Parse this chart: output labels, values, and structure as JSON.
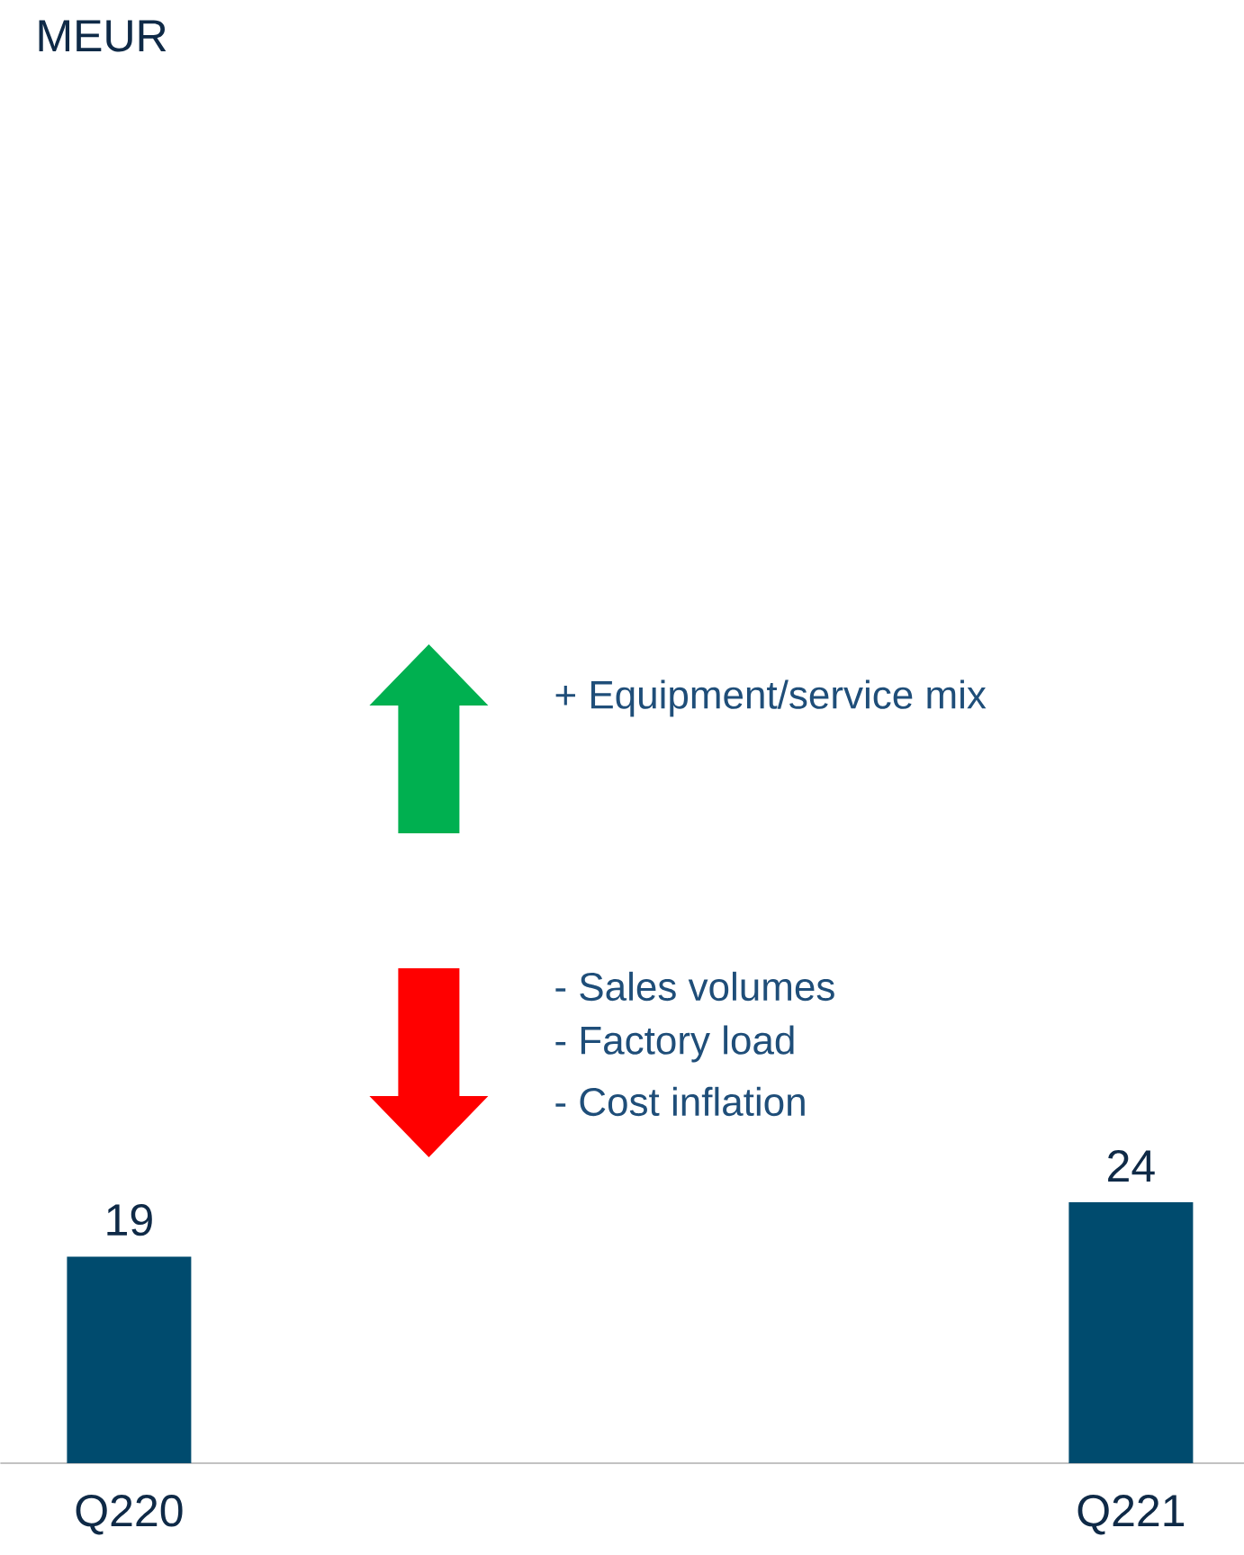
{
  "chart_data": {
    "type": "bar",
    "categories": [
      "Q220",
      "Q221"
    ],
    "values": [
      19,
      24
    ],
    "color": "#004b6e",
    "data_labels": true,
    "annotations": [
      "MEUR",
      "+ Equipment/service mix",
      "- Sales volumes",
      "- Factory load",
      "- Cost inflation"
    ]
  }
}
